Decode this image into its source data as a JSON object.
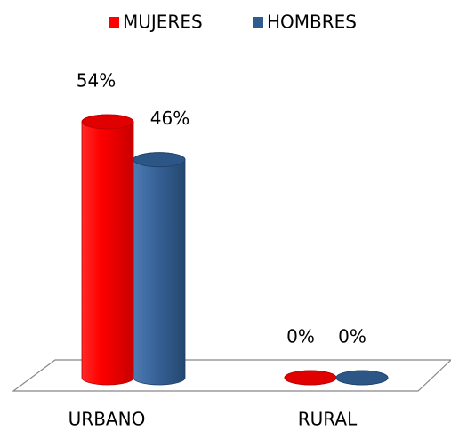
{
  "chart_data": {
    "type": "bar3d",
    "categories": [
      "URBANO",
      "RURAL"
    ],
    "series": [
      {
        "name": "MUJERES",
        "color": "#ff0000",
        "values": [
          54,
          0
        ],
        "value_labels": [
          "54%",
          "0%"
        ]
      },
      {
        "name": "HOMBRES",
        "color": "#2f5b8f",
        "values": [
          46,
          0
        ],
        "value_labels": [
          "46%",
          "0%"
        ]
      }
    ],
    "legend": "top"
  }
}
